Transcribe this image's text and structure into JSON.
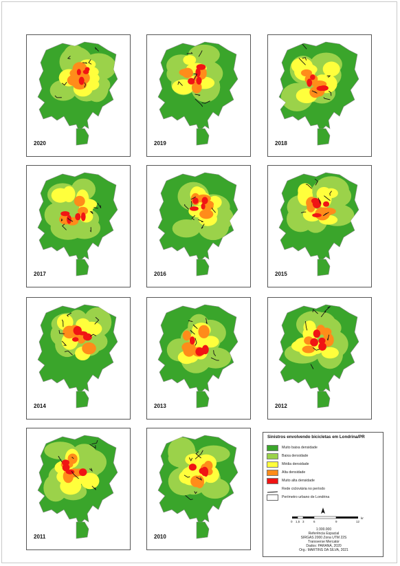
{
  "panels": [
    {
      "year": "2020",
      "seed": 1
    },
    {
      "year": "2019",
      "seed": 2
    },
    {
      "year": "2018",
      "seed": 3
    },
    {
      "year": "2017",
      "seed": 4
    },
    {
      "year": "2016",
      "seed": 5
    },
    {
      "year": "2015",
      "seed": 6
    },
    {
      "year": "2014",
      "seed": 7
    },
    {
      "year": "2013",
      "seed": 8
    },
    {
      "year": "2012",
      "seed": 9
    },
    {
      "year": "2011",
      "seed": 10
    },
    {
      "year": "2010",
      "seed": 11
    }
  ],
  "legend": {
    "title": "Sinistros envolvendo bicicletas em Londrina/PR",
    "classes": [
      {
        "label": "Muito baixa densidade",
        "color": "#3aa52b"
      },
      {
        "label": "Baixa densidade",
        "color": "#9bd24a"
      },
      {
        "label": "Média densidade",
        "color": "#ffff3c"
      },
      {
        "label": "Alta densidade",
        "color": "#ff8c1a"
      },
      {
        "label": "Muito alta densidade",
        "color": "#f01414"
      }
    ],
    "network_label": "Rede cicloviária no período",
    "perimeter_label": "Perímetro urbano de Londrina"
  },
  "north_label": "N",
  "scale": {
    "ticks": [
      "0",
      "1,5",
      "3",
      "6",
      "9",
      "12"
    ],
    "unit": "km",
    "ratio": "1:300.000"
  },
  "credits": [
    "Referência Espacial",
    "SIRGAS 2000 Zona UTM 22S",
    "Transverse Mercator",
    "Dados: PARANÁ, 2020",
    "Org.: MARTINS DA SILVA, 2021"
  ],
  "colors": {
    "frame": "#555555",
    "outline": "#888888"
  }
}
